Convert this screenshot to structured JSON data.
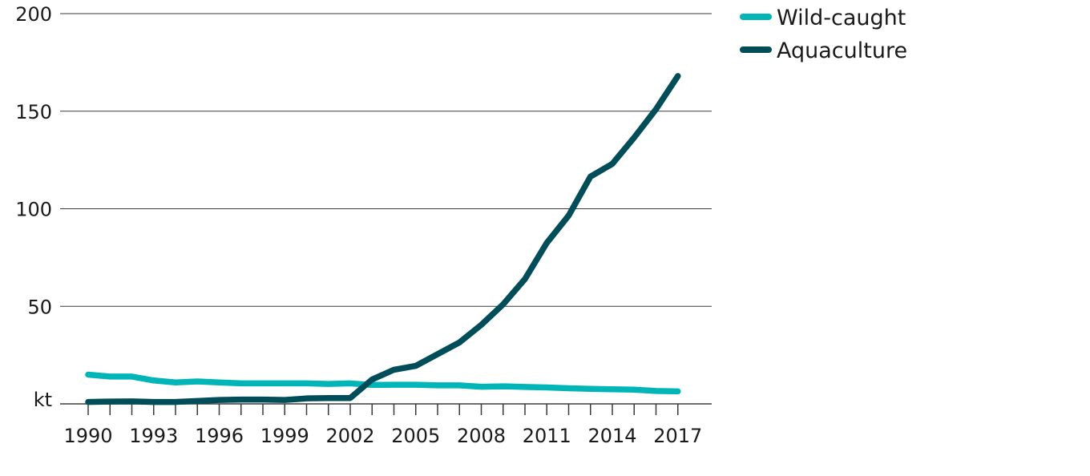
{
  "chart_data": {
    "type": "line",
    "title": "",
    "xlabel": "",
    "ylabel": "",
    "y_unit_label": "kt",
    "x": [
      1990,
      1991,
      1992,
      1993,
      1994,
      1995,
      1996,
      1997,
      1998,
      1999,
      2000,
      2001,
      2002,
      2003,
      2004,
      2005,
      2006,
      2007,
      2008,
      2009,
      2010,
      2011,
      2012,
      2013,
      2014,
      2015,
      2016,
      2017
    ],
    "x_tick_labels": [
      "1990",
      "1993",
      "1996",
      "1999",
      "2002",
      "2005",
      "2008",
      "2011",
      "2014",
      "2017"
    ],
    "y_tick_labels": [
      "50",
      "100",
      "150",
      "200"
    ],
    "ylim": [
      0,
      200
    ],
    "grid": true,
    "legend_position": "top-right",
    "series": [
      {
        "name": "Wild-caught",
        "color": "#00b5b8",
        "values": [
          15,
          14,
          14,
          12,
          11,
          11.5,
          11,
          10.5,
          10.5,
          10.5,
          10.5,
          10.2,
          10.5,
          9.7,
          9.8,
          9.8,
          9.5,
          9.5,
          8.8,
          9,
          8.7,
          8.4,
          8,
          7.7,
          7.5,
          7.3,
          6.6,
          6.4
        ]
      },
      {
        "name": "Aquaculture",
        "color": "#004d5a",
        "values": [
          1,
          1.2,
          1.3,
          1,
          1,
          1.5,
          2,
          2.2,
          2.2,
          2,
          2.8,
          3,
          3,
          12.5,
          17.5,
          19.5,
          25.5,
          31.5,
          40.5,
          51,
          64,
          82.5,
          96.5,
          116.5,
          123,
          136.5,
          151,
          168
        ]
      }
    ]
  }
}
